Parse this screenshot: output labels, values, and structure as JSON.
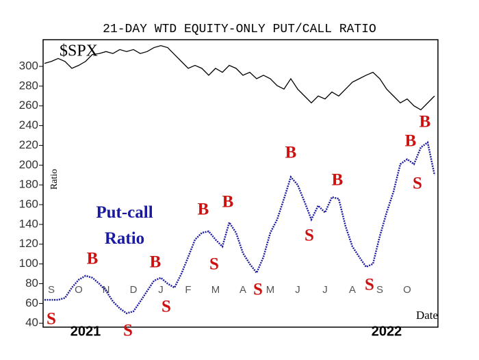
{
  "chart_data": {
    "type": "line",
    "title": "21-DAY WTD EQUITY-ONLY PUT/CALL RATIO",
    "y_label": "Ratio",
    "x_label": "Date",
    "year_labels": [
      "2021",
      "2022"
    ],
    "categories": [
      null,
      "S",
      null,
      null,
      null,
      "O",
      null,
      null,
      null,
      "N",
      null,
      null,
      null,
      "D",
      null,
      null,
      null,
      "J",
      null,
      null,
      null,
      "F",
      null,
      null,
      null,
      "M",
      null,
      null,
      null,
      "A",
      null,
      null,
      null,
      "M",
      null,
      null,
      null,
      "J",
      null,
      null,
      null,
      "J",
      null,
      null,
      null,
      "A",
      null,
      null,
      null,
      "S",
      null,
      null,
      null,
      "O",
      null,
      null,
      null,
      null
    ],
    "series": [
      {
        "name": "$SPX",
        "color": "#000000",
        "values": [
          303,
          305,
          308,
          305,
          298,
          301,
          305,
          312,
          313,
          315,
          313,
          317,
          315,
          317,
          313,
          315,
          319,
          321,
          319,
          312,
          305,
          298,
          301,
          298,
          291,
          298,
          294,
          301,
          298,
          291,
          294,
          287.5,
          291,
          287.5,
          280.5,
          277,
          287.5,
          277,
          270,
          263,
          270,
          267,
          274,
          270,
          277,
          284,
          287.5,
          291,
          294,
          287.5,
          277,
          270,
          263,
          267,
          260,
          256,
          263,
          270
        ]
      },
      {
        "name": "Put-call Ratio",
        "color": "#1a1aa0",
        "values": [
          63.6,
          63.6,
          63.6,
          65.6,
          76,
          84,
          88,
          86,
          80,
          72.6,
          62,
          55,
          50,
          52,
          62,
          72.6,
          83,
          86,
          80,
          76,
          90,
          107,
          124.6,
          131.5,
          133,
          124.6,
          117.6,
          142,
          131.5,
          111,
          100,
          91,
          107,
          131.5,
          145,
          166,
          188,
          180,
          163,
          145,
          159,
          152,
          167.6,
          166,
          138,
          117.6,
          107,
          97,
          100,
          128,
          152,
          173,
          201,
          206,
          201,
          218,
          223,
          190
        ]
      }
    ],
    "annotations": [
      "S",
      "B",
      "S",
      "B",
      "S",
      "B",
      "S",
      "B",
      "S",
      "B",
      "S",
      "B",
      "S",
      "S",
      "B",
      "B"
    ],
    "ylim": [
      36,
      327
    ],
    "yticks": [
      40,
      60,
      80,
      100,
      120,
      140,
      160,
      180,
      200,
      220,
      240,
      260,
      280,
      300
    ]
  }
}
